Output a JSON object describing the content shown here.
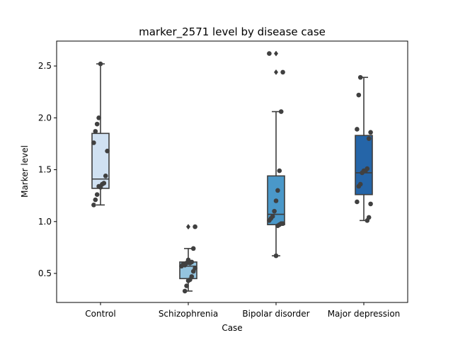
{
  "chart_data": {
    "type": "box",
    "title": "marker_2571 level by disease case",
    "xlabel": "Case",
    "ylabel": "Marker level",
    "ylim": [
      0.22,
      2.74
    ],
    "yticks": [
      0.5,
      1.0,
      1.5,
      2.0,
      2.5
    ],
    "ytick_labels": [
      "0.5",
      "1.0",
      "1.5",
      "2.0",
      "2.5"
    ],
    "grid": false,
    "categories": [
      "Control",
      "Schizophrenia",
      "Bipolar disorder",
      "Major depression"
    ],
    "box_colors": [
      "#d0e1f2",
      "#94c4df",
      "#4a98c9",
      "#2565a8"
    ],
    "boxes": [
      {
        "q1": 1.32,
        "median": 1.41,
        "q3": 1.85,
        "whisker_low": 1.16,
        "whisker_high": 2.52,
        "outliers": []
      },
      {
        "q1": 0.45,
        "median": 0.57,
        "q3": 0.61,
        "whisker_low": 0.33,
        "whisker_high": 0.74,
        "outliers": [
          0.95
        ]
      },
      {
        "q1": 0.97,
        "median": 1.07,
        "q3": 1.44,
        "whisker_low": 0.67,
        "whisker_high": 2.06,
        "outliers": [
          2.44,
          2.62
        ]
      },
      {
        "q1": 1.26,
        "median": 1.47,
        "q3": 1.83,
        "whisker_low": 1.01,
        "whisker_high": 2.39,
        "outliers": []
      }
    ],
    "points": [
      [
        1.16,
        1.21,
        1.26,
        1.34,
        1.33,
        1.36,
        1.37,
        1.44,
        1.68,
        1.76,
        1.87,
        1.94,
        2.0,
        2.52
      ],
      [
        0.33,
        0.38,
        0.43,
        0.44,
        0.47,
        0.52,
        0.55,
        0.57,
        0.59,
        0.58,
        0.6,
        0.63,
        0.6,
        0.61,
        0.74,
        0.95
      ],
      [
        0.67,
        0.96,
        0.97,
        0.98,
        0.98,
        1.01,
        1.03,
        1.05,
        1.1,
        1.2,
        1.3,
        1.49,
        2.06,
        2.44,
        2.62
      ],
      [
        1.01,
        1.04,
        1.17,
        1.19,
        1.34,
        1.36,
        1.47,
        1.49,
        1.49,
        1.51,
        1.8,
        1.86,
        1.89,
        2.22,
        2.39
      ]
    ]
  }
}
